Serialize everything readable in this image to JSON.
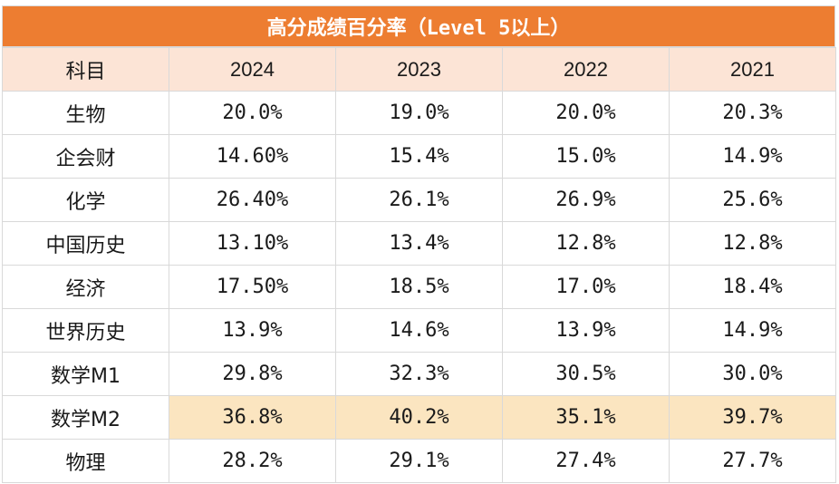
{
  "table": {
    "title": "高分成绩百分率（Level 5以上）",
    "header": {
      "subject_label": "科目",
      "years": [
        "2024",
        "2023",
        "2022",
        "2021"
      ]
    },
    "rows": [
      {
        "subject": "生物",
        "values": [
          "20.0%",
          "19.0%",
          "20.0%",
          "20.3%"
        ],
        "highlight": false
      },
      {
        "subject": "企会财",
        "values": [
          "14.60%",
          "15.4%",
          "15.0%",
          "14.9%"
        ],
        "highlight": false
      },
      {
        "subject": "化学",
        "values": [
          "26.40%",
          "26.1%",
          "26.9%",
          "25.6%"
        ],
        "highlight": false
      },
      {
        "subject": "中国历史",
        "values": [
          "13.10%",
          "13.4%",
          "12.8%",
          "12.8%"
        ],
        "highlight": false
      },
      {
        "subject": "经济",
        "values": [
          "17.50%",
          "18.5%",
          "17.0%",
          "18.4%"
        ],
        "highlight": false
      },
      {
        "subject": "世界历史",
        "values": [
          "13.9%",
          "14.6%",
          "13.9%",
          "14.9%"
        ],
        "highlight": false
      },
      {
        "subject": "数学M1",
        "values": [
          "29.8%",
          "32.3%",
          "30.5%",
          "30.0%"
        ],
        "highlight": false
      },
      {
        "subject": "数学M2",
        "values": [
          "36.8%",
          "40.2%",
          "35.1%",
          "39.7%"
        ],
        "highlight": true
      },
      {
        "subject": "物理",
        "values": [
          "28.2%",
          "29.1%",
          "27.4%",
          "27.7%"
        ],
        "highlight": false
      }
    ]
  },
  "colors": {
    "title_background": "#ed7d31",
    "header_background": "#fce4d6",
    "highlight_background": "#fbe5c0",
    "grid_line": "#d9d9d9"
  }
}
